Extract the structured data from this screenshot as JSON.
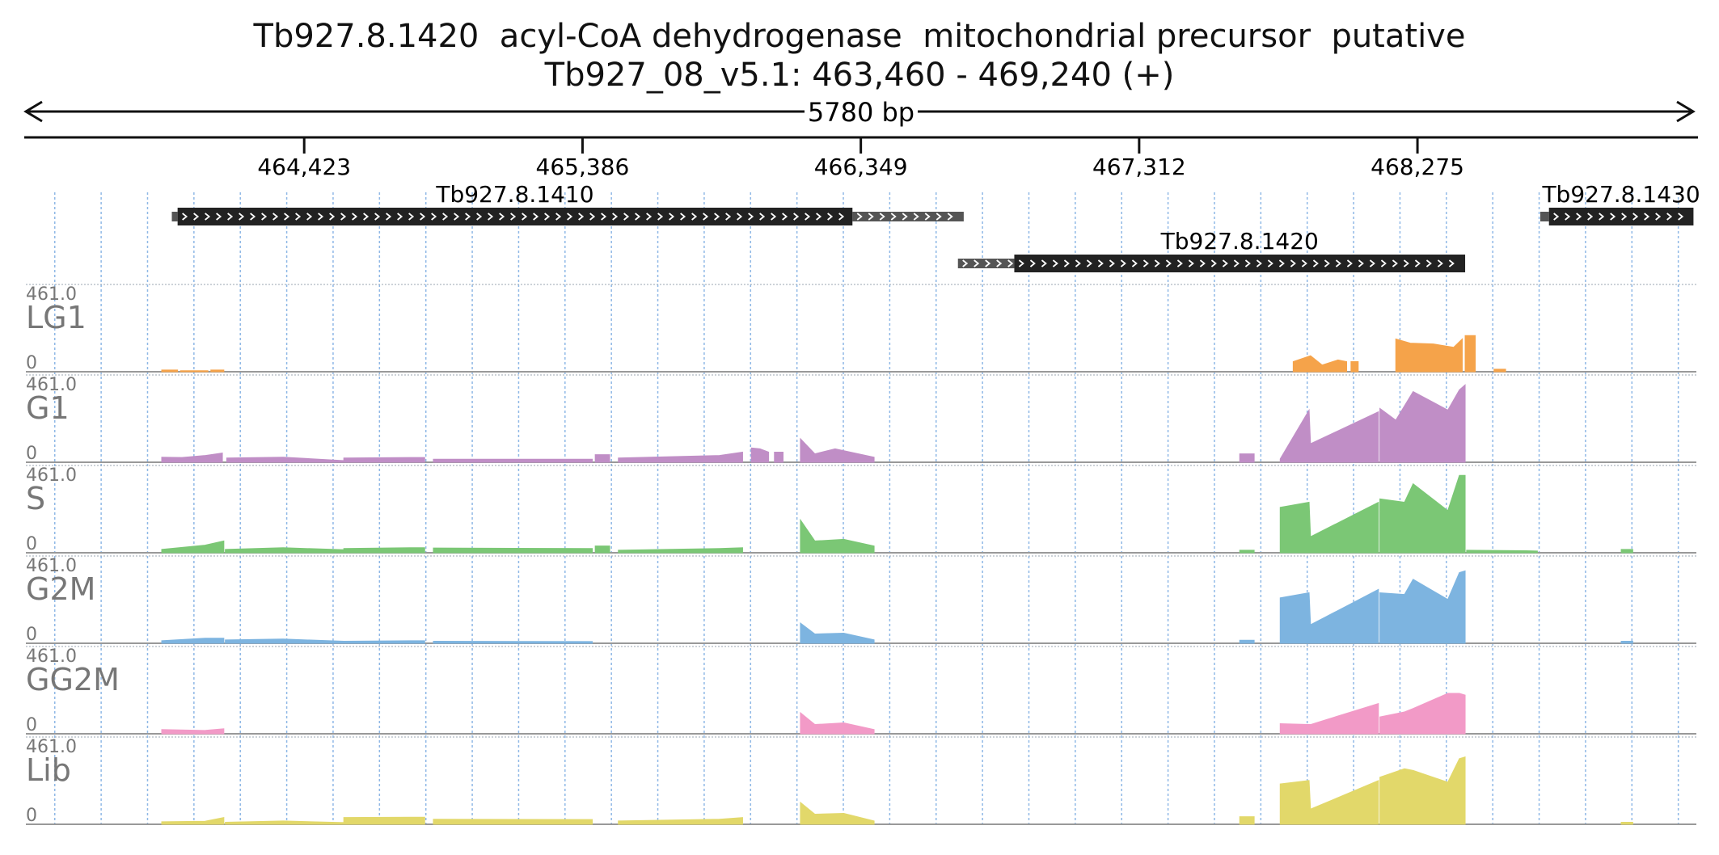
{
  "title": {
    "line1": "Tb927.8.1420  acyl-CoA dehydrogenase  mitochondrial precursor  putative",
    "line2": "Tb927_08_v5.1: 463,460 - 469,240 (+)"
  },
  "ruler": {
    "span_label": "5780 bp",
    "range": [
      463460,
      469240
    ],
    "ticks": [
      "464,423",
      "465,386",
      "466,349",
      "467,312",
      "468,275"
    ],
    "tick_positions": [
      464423,
      465386,
      466349,
      467312,
      468275
    ]
  },
  "genes": [
    {
      "name": "Tb927.8.1410",
      "utr5": [
        463965,
        463985
      ],
      "cds": [
        463985,
        466320
      ],
      "utr3": [
        466320,
        466705
      ],
      "row": 1
    },
    {
      "name": "Tb927.8.1420",
      "utr5": [
        466685,
        466880
      ],
      "cds": [
        466880,
        468440
      ],
      "utr3": null,
      "row": 2
    },
    {
      "name": "Tb927.8.1430",
      "utr5": [
        468700,
        468730
      ],
      "cds": [
        468730,
        469230
      ],
      "utr3": null,
      "row": 1
    }
  ],
  "tracks": [
    {
      "name": "LG1",
      "max": "461.0",
      "min": "0",
      "color": "#f5a34a",
      "segments": [
        {
          "x": [
            463930,
            463985
          ],
          "y": [
            10,
            10
          ]
        },
        {
          "x": [
            463995,
            464090
          ],
          "y": [
            6,
            6
          ]
        },
        {
          "x": [
            464100,
            464145
          ],
          "y": [
            10,
            10
          ]
        },
        {
          "x": [
            467845,
            467905,
            467945,
            468000,
            468030
          ],
          "y": [
            60,
            95,
            40,
            70,
            60
          ]
        },
        {
          "x": [
            468045,
            468070
          ],
          "y": [
            60,
            60
          ]
        },
        {
          "x": [
            468200,
            468250,
            468330,
            468400,
            468430
          ],
          "y": [
            195,
            170,
            165,
            145,
            195
          ]
        },
        {
          "x": [
            468440,
            468475
          ],
          "y": [
            215,
            215
          ]
        },
        {
          "x": [
            468540,
            468580
          ],
          "y": [
            15,
            15
          ]
        }
      ]
    },
    {
      "name": "G1",
      "max": "461.0",
      "min": "0",
      "color": "#c08ec6",
      "segments": [
        {
          "x": [
            463930,
            464000,
            464080,
            464140
          ],
          "y": [
            30,
            28,
            40,
            55
          ]
        },
        {
          "x": [
            464155,
            464350,
            464560
          ],
          "y": [
            25,
            30,
            10
          ]
        },
        {
          "x": [
            464560,
            464790,
            464840
          ],
          "y": [
            25,
            28,
            28
          ]
        },
        {
          "x": [
            464870,
            465420
          ],
          "y": [
            18,
            18
          ]
        },
        {
          "x": [
            465430,
            465480
          ],
          "y": [
            45,
            45
          ]
        },
        {
          "x": [
            465510,
            465860,
            465940
          ],
          "y": [
            25,
            40,
            60
          ]
        },
        {
          "x": [
            465970,
            466000,
            466030
          ],
          "y": [
            85,
            80,
            60
          ]
        },
        {
          "x": [
            466050,
            466080
          ],
          "y": [
            60,
            60
          ]
        },
        {
          "x": [
            466140,
            466190,
            466260,
            466395
          ],
          "y": [
            140,
            50,
            80,
            30
          ]
        },
        {
          "x": [
            467660,
            467710
          ],
          "y": [
            50,
            50
          ]
        },
        {
          "x": [
            467800,
            467900,
            467905,
            468140
          ],
          "y": [
            20,
            310,
            110,
            300
          ]
        },
        {
          "x": [
            468145,
            468200,
            468260,
            468380,
            468420,
            468440
          ],
          "y": [
            320,
            250,
            420,
            310,
            430,
            460
          ]
        }
      ]
    },
    {
      "name": "S",
      "max": "461.0",
      "min": "0",
      "color": "#7bc775",
      "segments": [
        {
          "x": [
            463930,
            464080,
            464145
          ],
          "y": [
            20,
            45,
            70
          ]
        },
        {
          "x": [
            464150,
            464350,
            464560
          ],
          "y": [
            20,
            30,
            18
          ]
        },
        {
          "x": [
            464560,
            464790,
            464840
          ],
          "y": [
            25,
            30,
            30
          ]
        },
        {
          "x": [
            464870,
            465420
          ],
          "y": [
            28,
            25
          ]
        },
        {
          "x": [
            465430,
            465480
          ],
          "y": [
            40,
            40
          ]
        },
        {
          "x": [
            465510,
            465860,
            465940
          ],
          "y": [
            15,
            25,
            30
          ]
        },
        {
          "x": [
            466140,
            466190,
            466290,
            466395
          ],
          "y": [
            195,
            70,
            80,
            40
          ]
        },
        {
          "x": [
            467660,
            467710
          ],
          "y": [
            15,
            15
          ]
        },
        {
          "x": [
            467800,
            467900,
            467905,
            468140
          ],
          "y": [
            270,
            300,
            95,
            300
          ]
        },
        {
          "x": [
            468145,
            468230,
            468260,
            468380,
            468420,
            468440
          ],
          "y": [
            320,
            300,
            410,
            250,
            460,
            460
          ]
        },
        {
          "x": [
            468445,
            468650,
            468690
          ],
          "y": [
            15,
            12,
            10
          ]
        },
        {
          "x": [
            468980,
            469020
          ],
          "y": [
            20,
            20
          ]
        }
      ]
    },
    {
      "name": "G2M",
      "max": "461.0",
      "min": "0",
      "color": "#7db4e0",
      "segments": [
        {
          "x": [
            463930,
            464080,
            464145
          ],
          "y": [
            15,
            30,
            30
          ]
        },
        {
          "x": [
            464150,
            464350,
            464560
          ],
          "y": [
            20,
            25,
            12
          ]
        },
        {
          "x": [
            464560,
            464790,
            464840
          ],
          "y": [
            12,
            15,
            15
          ]
        },
        {
          "x": [
            464870,
            465420
          ],
          "y": [
            12,
            10
          ]
        },
        {
          "x": [
            466140,
            466190,
            466290,
            466395
          ],
          "y": [
            120,
            55,
            60,
            20
          ]
        },
        {
          "x": [
            467660,
            467710
          ],
          "y": [
            18,
            18
          ]
        },
        {
          "x": [
            467800,
            467900,
            467905,
            468140
          ],
          "y": [
            270,
            300,
            110,
            320
          ]
        },
        {
          "x": [
            468145,
            468230,
            468260,
            468380,
            468420,
            468440
          ],
          "y": [
            300,
            290,
            380,
            260,
            420,
            430
          ]
        },
        {
          "x": [
            468980,
            469020
          ],
          "y": [
            12,
            12
          ]
        }
      ]
    },
    {
      "name": "GG2M",
      "max": "461.0",
      "min": "0",
      "color": "#f29ac7",
      "segments": [
        {
          "x": [
            463930,
            464080,
            464145
          ],
          "y": [
            25,
            20,
            30
          ]
        },
        {
          "x": [
            466140,
            466190,
            466290,
            466395
          ],
          "y": [
            125,
            55,
            65,
            25
          ]
        },
        {
          "x": [
            467800,
            467900,
            467905,
            468140
          ],
          "y": [
            60,
            55,
            55,
            180
          ]
        },
        {
          "x": [
            468145,
            468230,
            468260,
            468380,
            468420,
            468440
          ],
          "y": [
            100,
            130,
            150,
            240,
            240,
            230
          ]
        }
      ]
    },
    {
      "name": "Lib",
      "max": "461.0",
      "min": "0",
      "color": "#e2d86a",
      "segments": [
        {
          "x": [
            463930,
            464080,
            464145
          ],
          "y": [
            15,
            18,
            40
          ]
        },
        {
          "x": [
            464150,
            464350,
            464560
          ],
          "y": [
            12,
            20,
            10
          ]
        },
        {
          "x": [
            464560,
            464790,
            464840
          ],
          "y": [
            40,
            42,
            42
          ]
        },
        {
          "x": [
            464870,
            465420
          ],
          "y": [
            30,
            28
          ]
        },
        {
          "x": [
            465510,
            465860,
            465940
          ],
          "y": [
            20,
            30,
            40
          ]
        },
        {
          "x": [
            466140,
            466190,
            466290,
            466395
          ],
          "y": [
            130,
            60,
            65,
            20
          ]
        },
        {
          "x": [
            467660,
            467710
          ],
          "y": [
            45,
            45
          ]
        },
        {
          "x": [
            467800,
            467900,
            467905,
            468140
          ],
          "y": [
            240,
            260,
            90,
            260
          ]
        },
        {
          "x": [
            468145,
            468230,
            468260,
            468380,
            468420,
            468440
          ],
          "y": [
            280,
            330,
            320,
            250,
            390,
            400
          ]
        },
        {
          "x": [
            468980,
            469020
          ],
          "y": [
            12,
            12
          ]
        }
      ]
    }
  ],
  "style": {
    "grid_color": "#8fb8e6",
    "gene_color": "#222222",
    "utr_color": "#555555",
    "label_gray": "#777777",
    "baseline_color": "#999999"
  }
}
